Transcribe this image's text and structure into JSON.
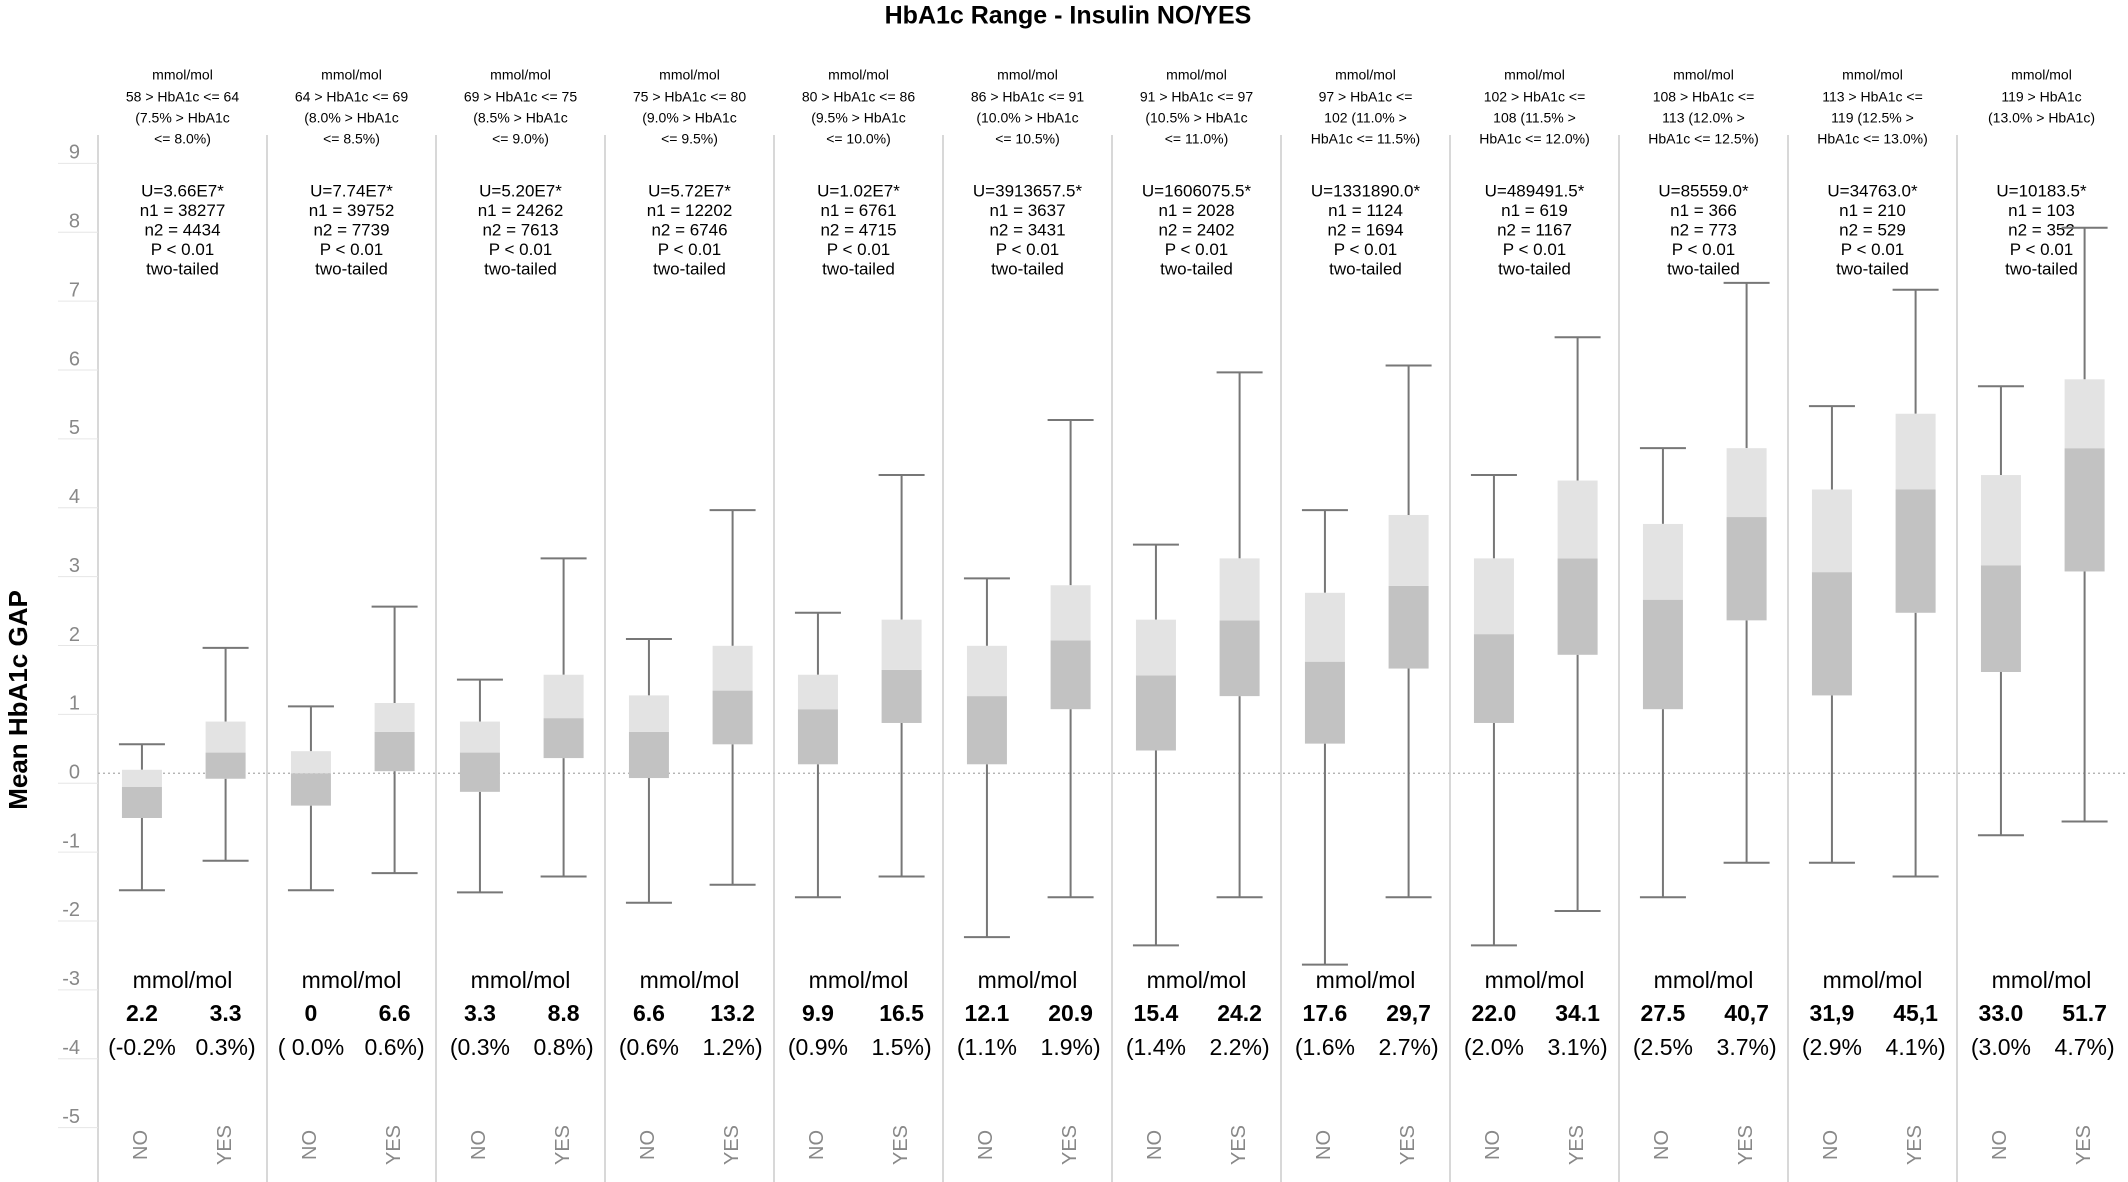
{
  "chart_data": {
    "type": "box",
    "title": "HbA1c Range  - Insulin NO/YES",
    "ylabel": "Mean HbA1c GAP",
    "categories": [
      "NO",
      "YES"
    ],
    "ylim": [
      -5.5,
      9.5
    ],
    "yticks": [
      -5,
      -4,
      -3,
      -2,
      -1,
      0,
      1,
      2,
      3,
      4,
      5,
      6,
      7,
      8,
      9
    ],
    "colors": {
      "upper": "#e3e3e3",
      "lower": "#c2c2c2",
      "whisker": "#777777"
    },
    "panels": [
      {
        "header": [
          "mmol/mol",
          "58 > HbA1c <= 64",
          "(7.5% > HbA1c",
          "<= 8.0%)"
        ],
        "stats": [
          "U=3.66E7*",
          "n1 = 38277",
          "n2 = 4434",
          "P < 0.01",
          "two-tailed"
        ],
        "unit": "mmol/mol",
        "means": [
          "2.2",
          "3.3"
        ],
        "percents": [
          "(-0.2%",
          "0.3%)"
        ],
        "boxes": [
          {
            "whislo": -1.7,
            "q1": -0.65,
            "med": -0.2,
            "q3": 0.05,
            "whishi": 0.42
          },
          {
            "whislo": -1.27,
            "q1": -0.08,
            "med": 0.3,
            "q3": 0.75,
            "whishi": 1.82
          }
        ]
      },
      {
        "header": [
          "mmol/mol",
          "64 > HbA1c <= 69",
          "(8.0% > HbA1c",
          "<= 8.5%)"
        ],
        "stats": [
          "U=7.74E7*",
          "n1 = 39752",
          "n2 = 7739",
          "P < 0.01",
          "two-tailed"
        ],
        "unit": "mmol/mol",
        "means": [
          "0",
          "6.6"
        ],
        "percents": [
          "( 0.0%",
          "0.6%)"
        ],
        "boxes": [
          {
            "whislo": -1.7,
            "q1": -0.47,
            "med": 0.0,
            "q3": 0.32,
            "whishi": 0.97
          },
          {
            "whislo": -1.45,
            "q1": 0.03,
            "med": 0.6,
            "q3": 1.02,
            "whishi": 2.42
          }
        ]
      },
      {
        "header": [
          "mmol/mol",
          "69 > HbA1c <= 75",
          "(8.5% > HbA1c",
          "<= 9.0%)"
        ],
        "stats": [
          "U=5.20E7*",
          "n1 = 24262",
          "n2 = 7613",
          "P < 0.01",
          "two-tailed"
        ],
        "unit": "mmol/mol",
        "means": [
          "3.3",
          "8.8"
        ],
        "percents": [
          "(0.3%",
          "0.8%)"
        ],
        "boxes": [
          {
            "whislo": -1.73,
            "q1": -0.27,
            "med": 0.3,
            "q3": 0.75,
            "whishi": 1.36
          },
          {
            "whislo": -1.5,
            "q1": 0.22,
            "med": 0.8,
            "q3": 1.43,
            "whishi": 3.12
          }
        ]
      },
      {
        "header": [
          "mmol/mol",
          "75 > HbA1c <= 80",
          "(9.0% > HbA1c",
          "<= 9.5%)"
        ],
        "stats": [
          "U=5.72E7*",
          "n1 = 12202",
          "n2 = 6746",
          "P < 0.01",
          "two-tailed"
        ],
        "unit": "mmol/mol",
        "means": [
          "6.6",
          "13.2"
        ],
        "percents": [
          "(0.6%",
          "1.2%)"
        ],
        "boxes": [
          {
            "whislo": -1.88,
            "q1": -0.07,
            "med": 0.6,
            "q3": 1.13,
            "whishi": 1.95
          },
          {
            "whislo": -1.62,
            "q1": 0.42,
            "med": 1.2,
            "q3": 1.85,
            "whishi": 3.82
          }
        ]
      },
      {
        "header": [
          "mmol/mol",
          "80 > HbA1c <= 86",
          "(9.5% > HbA1c",
          "<= 10.0%)"
        ],
        "stats": [
          "U=1.02E7*",
          "n1 = 6761",
          "n2 = 4715",
          "P < 0.01",
          "two-tailed"
        ],
        "unit": "mmol/mol",
        "means": [
          "9.9",
          "16.5"
        ],
        "percents": [
          "(0.9%",
          "1.5%)"
        ],
        "boxes": [
          {
            "whislo": -1.8,
            "q1": 0.13,
            "med": 0.93,
            "q3": 1.43,
            "whishi": 2.33
          },
          {
            "whislo": -1.5,
            "q1": 0.73,
            "med": 1.5,
            "q3": 2.23,
            "whishi": 4.33
          }
        ]
      },
      {
        "header": [
          "mmol/mol",
          "86 > HbA1c <= 91",
          "(10.0% > HbA1c",
          "<= 10.5%)"
        ],
        "stats": [
          "U=3913657.5*",
          "n1 = 3637",
          "n2 = 3431",
          "P < 0.01",
          "two-tailed"
        ],
        "unit": "mmol/mol",
        "means": [
          "12.1",
          "20.9"
        ],
        "percents": [
          "(1.1%",
          "1.9%)"
        ],
        "boxes": [
          {
            "whislo": -2.38,
            "q1": 0.13,
            "med": 1.12,
            "q3": 1.85,
            "whishi": 2.83
          },
          {
            "whislo": -1.8,
            "q1": 0.93,
            "med": 1.93,
            "q3": 2.73,
            "whishi": 5.13
          }
        ]
      },
      {
        "header": [
          "mmol/mol",
          "91 > HbA1c <= 97",
          "(10.5% > HbA1c",
          "<= 11.0%)"
        ],
        "stats": [
          "U=1606075.5*",
          "n1 = 2028",
          "n2 = 2402",
          "P < 0.01",
          "two-tailed"
        ],
        "unit": "mmol/mol",
        "means": [
          "15.4",
          "24.2"
        ],
        "percents": [
          "(1.4%",
          "2.2%)"
        ],
        "boxes": [
          {
            "whislo": -2.5,
            "q1": 0.33,
            "med": 1.42,
            "q3": 2.23,
            "whishi": 3.32
          },
          {
            "whislo": -1.8,
            "q1": 1.12,
            "med": 2.22,
            "q3": 3.12,
            "whishi": 5.82
          }
        ]
      },
      {
        "header": [
          "mmol/mol",
          "97 > HbA1c <=",
          "102 (11.0% >",
          "HbA1c <= 11.5%)"
        ],
        "stats": [
          "U=1331890.0*",
          "n1 = 1124",
          "n2 = 1694",
          "P < 0.01",
          "two-tailed"
        ],
        "unit": "mmol/mol",
        "means": [
          "17.6",
          "29,7"
        ],
        "percents": [
          "(1.6%",
          "2.7%)"
        ],
        "boxes": [
          {
            "whislo": -2.78,
            "q1": 0.43,
            "med": 1.62,
            "q3": 2.62,
            "whishi": 3.82
          },
          {
            "whislo": -1.8,
            "q1": 1.52,
            "med": 2.72,
            "q3": 3.75,
            "whishi": 5.92
          }
        ]
      },
      {
        "header": [
          "mmol/mol",
          "102 > HbA1c <=",
          "108 (11.5% >",
          "HbA1c <= 12.0%)"
        ],
        "stats": [
          "U=489491.5*",
          "n1 = 619",
          "n2 = 1167",
          "P < 0.01",
          "two-tailed"
        ],
        "unit": "mmol/mol",
        "means": [
          "22.0",
          "34.1"
        ],
        "percents": [
          "(2.0%",
          "3.1%)"
        ],
        "boxes": [
          {
            "whislo": -2.5,
            "q1": 0.73,
            "med": 2.02,
            "q3": 3.12,
            "whishi": 4.33
          },
          {
            "whislo": -2.0,
            "q1": 1.72,
            "med": 3.12,
            "q3": 4.25,
            "whishi": 6.33
          }
        ]
      },
      {
        "header": [
          "mmol/mol",
          "108 > HbA1c <=",
          "113 (12.0% >",
          "HbA1c <= 12.5%)"
        ],
        "stats": [
          "U=85559.0*",
          "n1 = 366",
          "n2 = 773",
          "P < 0.01",
          "two-tailed"
        ],
        "unit": "mmol/mol",
        "means": [
          "27.5",
          "40,7"
        ],
        "percents": [
          "(2.5%",
          "3.7%)"
        ],
        "boxes": [
          {
            "whislo": -1.8,
            "q1": 0.93,
            "med": 2.52,
            "q3": 3.62,
            "whishi": 4.72
          },
          {
            "whislo": -1.3,
            "q1": 2.22,
            "med": 3.72,
            "q3": 4.72,
            "whishi": 7.12
          }
        ]
      },
      {
        "header": [
          "mmol/mol",
          "113 > HbA1c <=",
          "119 (12.5% >",
          "HbA1c <= 13.0%)"
        ],
        "stats": [
          "U=34763.0*",
          "n1 = 210",
          "n2 = 529",
          "P < 0.01",
          "two-tailed"
        ],
        "unit": "mmol/mol",
        "means": [
          "31,9",
          "45,1"
        ],
        "percents": [
          "(2.9%",
          "4.1%)"
        ],
        "boxes": [
          {
            "whislo": -1.3,
            "q1": 1.13,
            "med": 2.92,
            "q3": 4.12,
            "whishi": 5.33
          },
          {
            "whislo": -1.5,
            "q1": 2.33,
            "med": 4.12,
            "q3": 5.22,
            "whishi": 7.02
          }
        ]
      },
      {
        "header": [
          "mmol/mol",
          "119 > HbA1c",
          "(13.0% > HbA1c)"
        ],
        "stats": [
          "U=10183.5*",
          "n1 = 103",
          "n2 = 352",
          "P < 0.01",
          "two-tailed"
        ],
        "unit": "mmol/mol",
        "means": [
          "33.0",
          "51.7"
        ],
        "percents": [
          "(3.0%",
          "4.7%)"
        ],
        "boxes": [
          {
            "whislo": -0.9,
            "q1": 1.47,
            "med": 3.02,
            "q3": 4.33,
            "whishi": 5.62
          },
          {
            "whislo": -0.7,
            "q1": 2.93,
            "med": 4.72,
            "q3": 5.72,
            "whishi": 7.92
          }
        ]
      }
    ]
  }
}
